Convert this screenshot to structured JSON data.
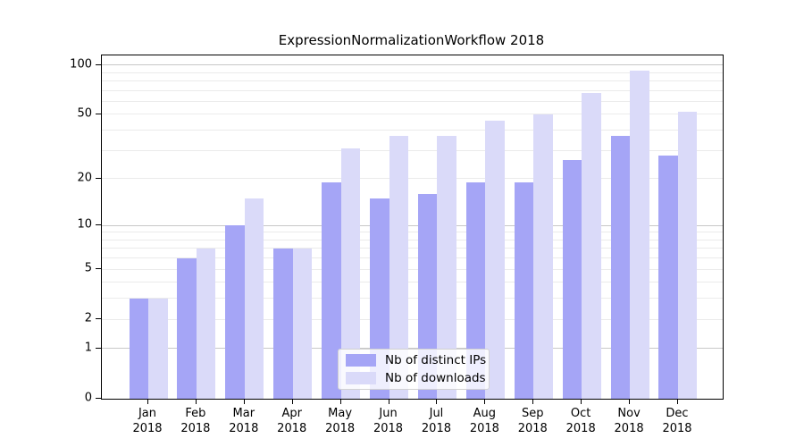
{
  "title": "ExpressionNormalizationWorkflow 2018",
  "colors": {
    "ips": "#a5a5f6",
    "downloads": "#dadaf9",
    "grid_major": "#c8c8c8",
    "grid_minor": "#ebebeb",
    "axis": "#000000",
    "legend_border": "#d2d2d2"
  },
  "legend": {
    "items": [
      {
        "label": "Nb of distinct IPs",
        "key": "ips"
      },
      {
        "label": "Nb of downloads",
        "key": "downloads"
      }
    ]
  },
  "x_axis": {
    "months": [
      "Jan",
      "Feb",
      "Mar",
      "Apr",
      "May",
      "Jun",
      "Jul",
      "Aug",
      "Sep",
      "Oct",
      "Nov",
      "Dec"
    ],
    "year": "2018"
  },
  "y_axis": {
    "scale": "symlog",
    "tick_values": [
      100,
      50,
      20,
      10,
      5,
      2,
      1,
      0
    ],
    "gridline_values_major": [
      1,
      10,
      100
    ],
    "gridline_values_minor": [
      2,
      3,
      4,
      5,
      6,
      7,
      8,
      9,
      20,
      30,
      40,
      50,
      60,
      70,
      80,
      90
    ]
  },
  "chart_data": {
    "type": "bar",
    "title": "ExpressionNormalizationWorkflow 2018",
    "categories": [
      "Jan 2018",
      "Feb 2018",
      "Mar 2018",
      "Apr 2018",
      "May 2018",
      "Jun 2018",
      "Jul 2018",
      "Aug 2018",
      "Sep 2018",
      "Oct 2018",
      "Nov 2018",
      "Dec 2018"
    ],
    "series": [
      {
        "name": "Nb of distinct IPs",
        "color": "#a5a5f6",
        "values": [
          3,
          6,
          10,
          7,
          19,
          15,
          16,
          19,
          19,
          26,
          37,
          28
        ]
      },
      {
        "name": "Nb of downloads",
        "color": "#dadaf9",
        "values": [
          3,
          7,
          15,
          7,
          31,
          37,
          37,
          46,
          50,
          68,
          92,
          52
        ]
      }
    ],
    "xlabel": "",
    "ylabel": "",
    "yscale": "symlog",
    "yticks": [
      0,
      1,
      2,
      5,
      10,
      20,
      50,
      100
    ],
    "ylim": [
      0,
      113
    ],
    "grid": true,
    "legend_position": "lower center"
  }
}
